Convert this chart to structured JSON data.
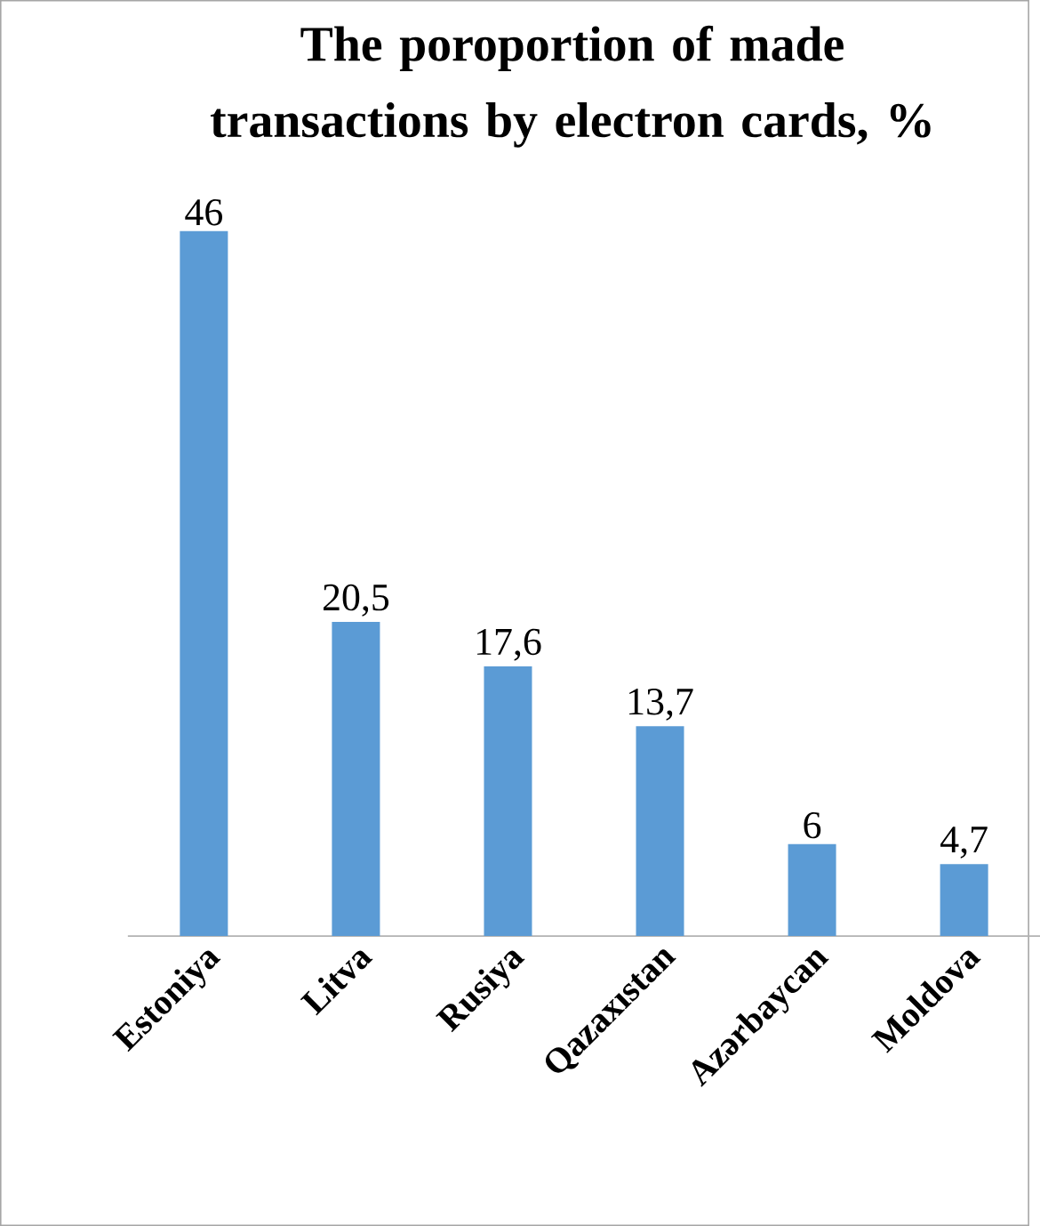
{
  "chart_data": {
    "type": "bar",
    "title": "The poroportion of made transactions by electron cards, %",
    "categories": [
      "Estoniya",
      "Litva",
      "Rusiya",
      "Qazaxıstan",
      "Azərbaycan",
      "Moldova"
    ],
    "values": [
      46,
      20.5,
      17.6,
      13.7,
      6,
      4.7
    ],
    "value_labels": [
      "46",
      "20,5",
      "17,6",
      "13,7",
      "6",
      "4,7"
    ],
    "color": "#5b9bd5"
  }
}
